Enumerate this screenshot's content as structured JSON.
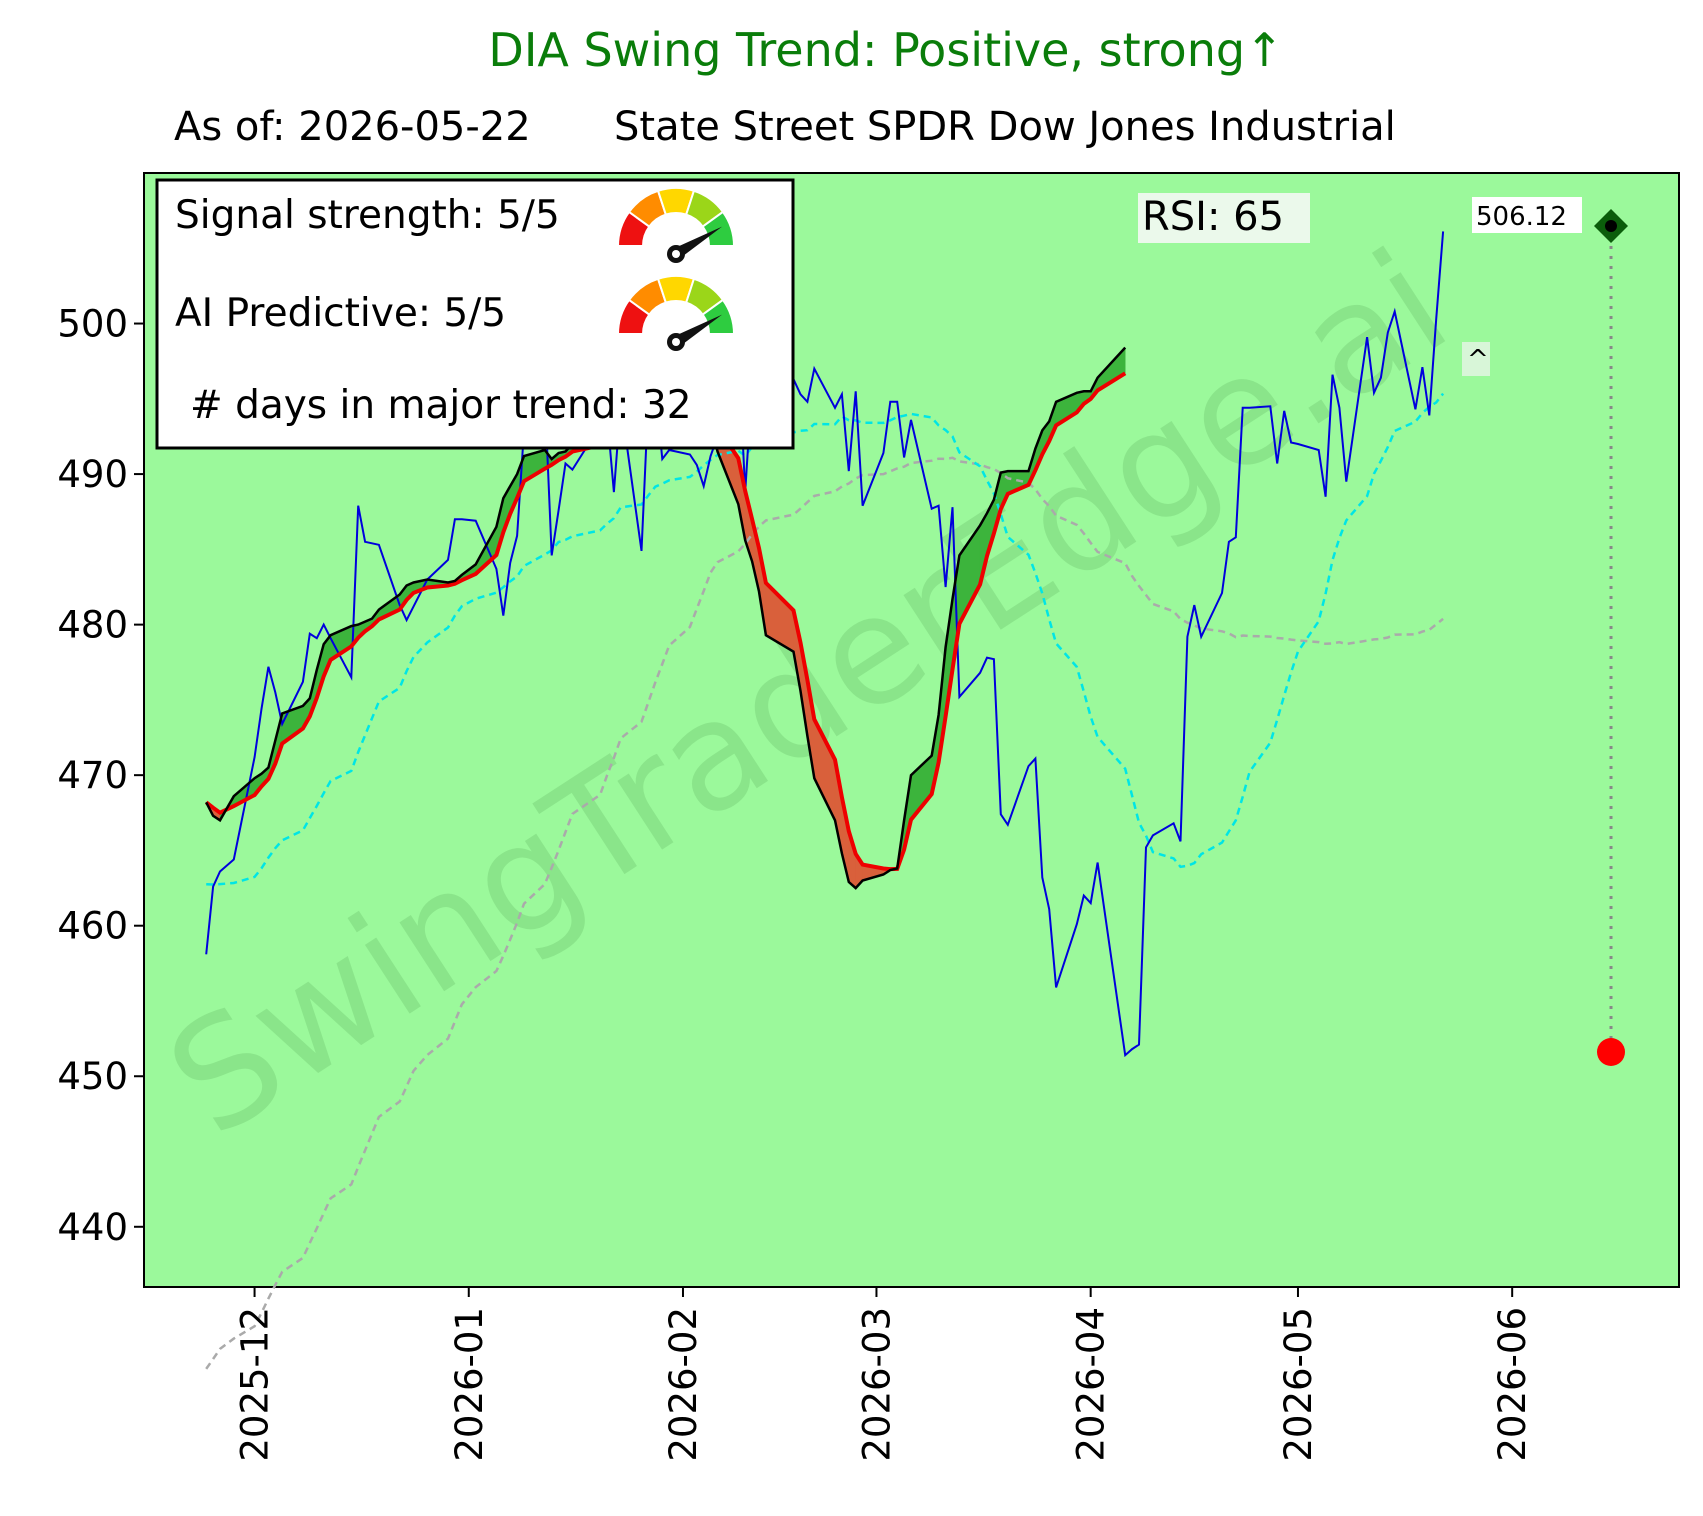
{
  "header": {
    "title": "DIA  Swing Trend: Positive, strong↑",
    "as_of": "As of: 2026-05-22",
    "fund_name": "State Street SPDR Dow Jones Industrial"
  },
  "info_box": {
    "signal_strength": "Signal strength: 5/5",
    "ai_predictive": "AI Predictive: 5/5",
    "days_in_trend": "# days in major trend: 32"
  },
  "gauges": {
    "signal_strength_level": 5,
    "ai_predictive_level": 5,
    "max_level": 5
  },
  "rsi_label": "RSI:  65",
  "price_label": "506.12",
  "caret_label": "^",
  "watermark": "SwingTraderEdge.ai",
  "colors": {
    "background": "#9bf99b",
    "price_line": "#0000dd",
    "fast_line": "#000000",
    "slow_line": "#ee0000",
    "bull_fill": "#3cb43c",
    "bear_fill": "#d9603b",
    "ma_cyan": "#00e5e5",
    "ma_gray": "#aaaaaa",
    "title": "#0a7d0a"
  },
  "chart_data": {
    "type": "line",
    "y_ticks": [
      440,
      450,
      460,
      470,
      480,
      490,
      500
    ],
    "x_ticks": [
      "2025-12",
      "2026-01",
      "2026-02",
      "2026-03",
      "2026-04",
      "2026-05",
      "2026-06"
    ],
    "ylim": [
      436,
      510
    ],
    "x_dates": [
      "2025-11-24",
      "2025-11-25",
      "2025-11-26",
      "2025-11-28",
      "2025-12-01",
      "2025-12-02",
      "2025-12-03",
      "2025-12-04",
      "2025-12-05",
      "2025-12-08",
      "2025-12-09",
      "2025-12-10",
      "2025-12-11",
      "2025-12-12",
      "2025-12-15",
      "2025-12-16",
      "2025-12-17",
      "2025-12-18",
      "2025-12-19",
      "2025-12-22",
      "2025-12-23",
      "2025-12-24",
      "2025-12-26",
      "2025-12-29",
      "2025-12-30",
      "2025-12-31",
      "2026-01-02",
      "2026-01-05",
      "2026-01-06",
      "2026-01-07",
      "2026-01-08",
      "2026-01-09",
      "2026-01-12",
      "2026-01-13",
      "2026-01-14",
      "2026-01-15",
      "2026-01-16",
      "2026-01-20",
      "2026-01-21",
      "2026-01-22",
      "2026-01-23",
      "2026-01-26",
      "2026-01-27",
      "2026-01-28",
      "2026-01-29",
      "2026-01-30",
      "2026-02-02",
      "2026-02-03",
      "2026-02-04",
      "2026-02-05",
      "2026-02-06",
      "2026-02-09",
      "2026-02-10",
      "2026-02-11",
      "2026-02-12",
      "2026-02-13",
      "2026-02-17",
      "2026-02-18",
      "2026-02-19",
      "2026-02-20",
      "2026-02-23",
      "2026-02-24",
      "2026-02-25",
      "2026-02-26",
      "2026-02-27",
      "2026-03-02",
      "2026-03-03",
      "2026-03-04",
      "2026-03-05",
      "2026-03-06",
      "2026-03-09",
      "2026-03-10",
      "2026-03-11",
      "2026-03-12",
      "2026-03-13",
      "2026-03-16",
      "2026-03-17",
      "2026-03-18",
      "2026-03-19",
      "2026-03-20",
      "2026-03-23",
      "2026-03-24",
      "2026-03-25",
      "2026-03-26",
      "2026-03-27",
      "2026-03-30",
      "2026-03-31",
      "2026-04-01",
      "2026-04-02",
      "2026-04-06",
      "2026-04-07",
      "2026-04-08",
      "2026-04-09",
      "2026-04-10",
      "2026-04-13",
      "2026-04-14",
      "2026-04-15",
      "2026-04-16",
      "2026-04-17",
      "2026-04-20",
      "2026-04-21",
      "2026-04-22",
      "2026-04-23",
      "2026-04-24",
      "2026-04-27",
      "2026-04-28",
      "2026-04-29",
      "2026-04-30",
      "2026-05-01",
      "2026-05-04",
      "2026-05-05",
      "2026-05-06",
      "2026-05-07",
      "2026-05-08",
      "2026-05-11",
      "2026-05-12",
      "2026-05-13",
      "2026-05-14",
      "2026-05-15",
      "2026-05-18",
      "2026-05-19",
      "2026-05-20",
      "2026-05-21",
      "2026-05-22"
    ],
    "series": [
      {
        "values": [
          458.1,
          462.6,
          463.6,
          464.4,
          471.2,
          474.4,
          477.2,
          475.5,
          473.4,
          476.2,
          479.4,
          479.1,
          480,
          479.1,
          476.5,
          487.9,
          485.5,
          485.4,
          485.3,
          481.3,
          480.3,
          481.2,
          483,
          484.3,
          487,
          487,
          486.9,
          483.7,
          480.6,
          484.1,
          485.9,
          492.9,
          495.3,
          484.6,
          487.6,
          490.7,
          490.3,
          493.2,
          494,
          488.8,
          494.8,
          484.9,
          495.1,
          495.8,
          491,
          491.6,
          491.3,
          490.6,
          489.2,
          491.2,
          492.5,
          498.4,
          488.8,
          496.1,
          496.5,
          495.3,
          496.3,
          495.3,
          494.8,
          497,
          494.4,
          495.3,
          490.2,
          495.5,
          487.9,
          491.4,
          494.8,
          494.8,
          491.1,
          493.6,
          487.7,
          487.9,
          482.5,
          487.8,
          475.2,
          476.8,
          477.8,
          477.7,
          467.4,
          466.7,
          470.6,
          471.1,
          463.2,
          461.1,
          455.9,
          460.1,
          462,
          461.5,
          464.2,
          451.4,
          451.8,
          452.1,
          465.2,
          466,
          466.8,
          465.6,
          479.2,
          481.3,
          479.2,
          482.1,
          485.5,
          485.8,
          494.4,
          494.4,
          494.5,
          490.7,
          494.2,
          492.1,
          492,
          491.6,
          488.5,
          496.6,
          494.4,
          489.5,
          499.1,
          495.4,
          496.4,
          499.4,
          500.8,
          494.3,
          497.1,
          493.9,
          500.3,
          506.12
        ],
        "role": "price"
      },
      {
        "values": [
          468.2,
          467.3,
          467.0,
          468.6,
          469.8,
          470.1,
          470.5,
          472.3,
          474.1,
          474.6,
          475.1,
          477.0,
          478.7,
          479.3,
          479.9,
          480.0,
          480.2,
          480.4,
          481.0,
          482.0,
          482.6,
          482.8,
          483.0,
          482.8,
          482.9,
          483.3,
          484.0,
          486.5,
          488.4,
          489.2,
          490.0,
          491.2,
          491.6,
          491.0,
          491.4,
          491.5,
          492.0,
          492.5,
          493.8,
          494.6,
          494.8,
          495.4,
          495.6,
          495.7,
          496.0,
          495.5,
          494.9,
          494.3,
          494.0,
          493.6,
          491.5,
          488.0,
          485.6,
          484.2,
          482.2,
          479.3,
          478.2,
          475.6,
          472.6,
          469.8,
          467.0,
          464.8,
          462.9,
          462.5,
          463.0,
          463.4,
          463.7,
          463.8,
          467.0,
          470.0,
          471.3,
          474.0,
          478.5,
          481.7,
          484.6,
          486.6,
          487.4,
          488.3,
          490.1,
          490.2,
          490.2,
          491.7,
          492.9,
          493.5,
          494.8,
          495.4,
          495.5,
          495.5,
          496.4,
          498.4
        ],
        "role": "fast",
        "x_index": [
          0,
          1,
          2,
          3,
          4,
          5,
          6,
          7,
          8,
          9,
          10,
          11,
          12,
          13,
          14,
          15,
          16,
          17,
          18,
          19,
          20,
          21,
          22,
          23,
          24,
          25,
          26,
          27,
          28,
          29,
          30,
          31,
          32,
          33,
          34,
          35,
          36,
          37,
          38,
          39,
          40,
          41,
          42,
          43,
          44,
          45,
          46,
          47,
          48,
          49,
          50,
          51,
          52,
          53,
          54,
          55,
          56,
          57,
          58,
          59,
          60,
          61,
          62,
          63,
          64,
          65,
          66,
          67,
          68,
          69,
          70,
          71,
          72,
          73,
          74,
          75,
          76,
          77,
          78,
          79,
          80,
          81,
          82,
          83,
          84,
          85,
          86,
          87,
          88,
          89
        ]
      }
    ]
  }
}
